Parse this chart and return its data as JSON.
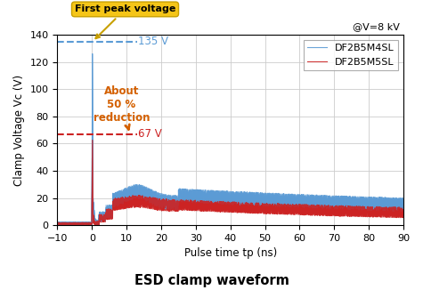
{
  "title": "ESD clamp waveform",
  "xlabel": "Pulse time tp (ns)",
  "ylabel": "Clamp Voltage Vc (V)",
  "annotation_top": "@V=8 kV",
  "label_blue": "DF2B5M4SL",
  "label_red": "DF2B5M5SL",
  "color_blue": "#5b9bd5",
  "color_red": "#cc2222",
  "xlim": [
    -10,
    90
  ],
  "ylim": [
    0,
    140
  ],
  "yticks": [
    0,
    20,
    40,
    60,
    80,
    100,
    120,
    140
  ],
  "xticks": [
    -10,
    0,
    10,
    20,
    30,
    40,
    50,
    60,
    70,
    80,
    90
  ],
  "peak_blue": 135,
  "peak_red": 67,
  "dashed_blue_color": "#5b9bd5",
  "dashed_red_color": "#cc2222",
  "first_peak_label": "First peak voltage",
  "first_peak_bg": "#f5c518",
  "about_label": "About\n50 %\nreduction",
  "about_color": "#d46000",
  "arrow_color": "#d46000",
  "v135_label": "135 V",
  "v67_label": "67 V",
  "background_color": "#ffffff",
  "grid_color": "#cccccc"
}
